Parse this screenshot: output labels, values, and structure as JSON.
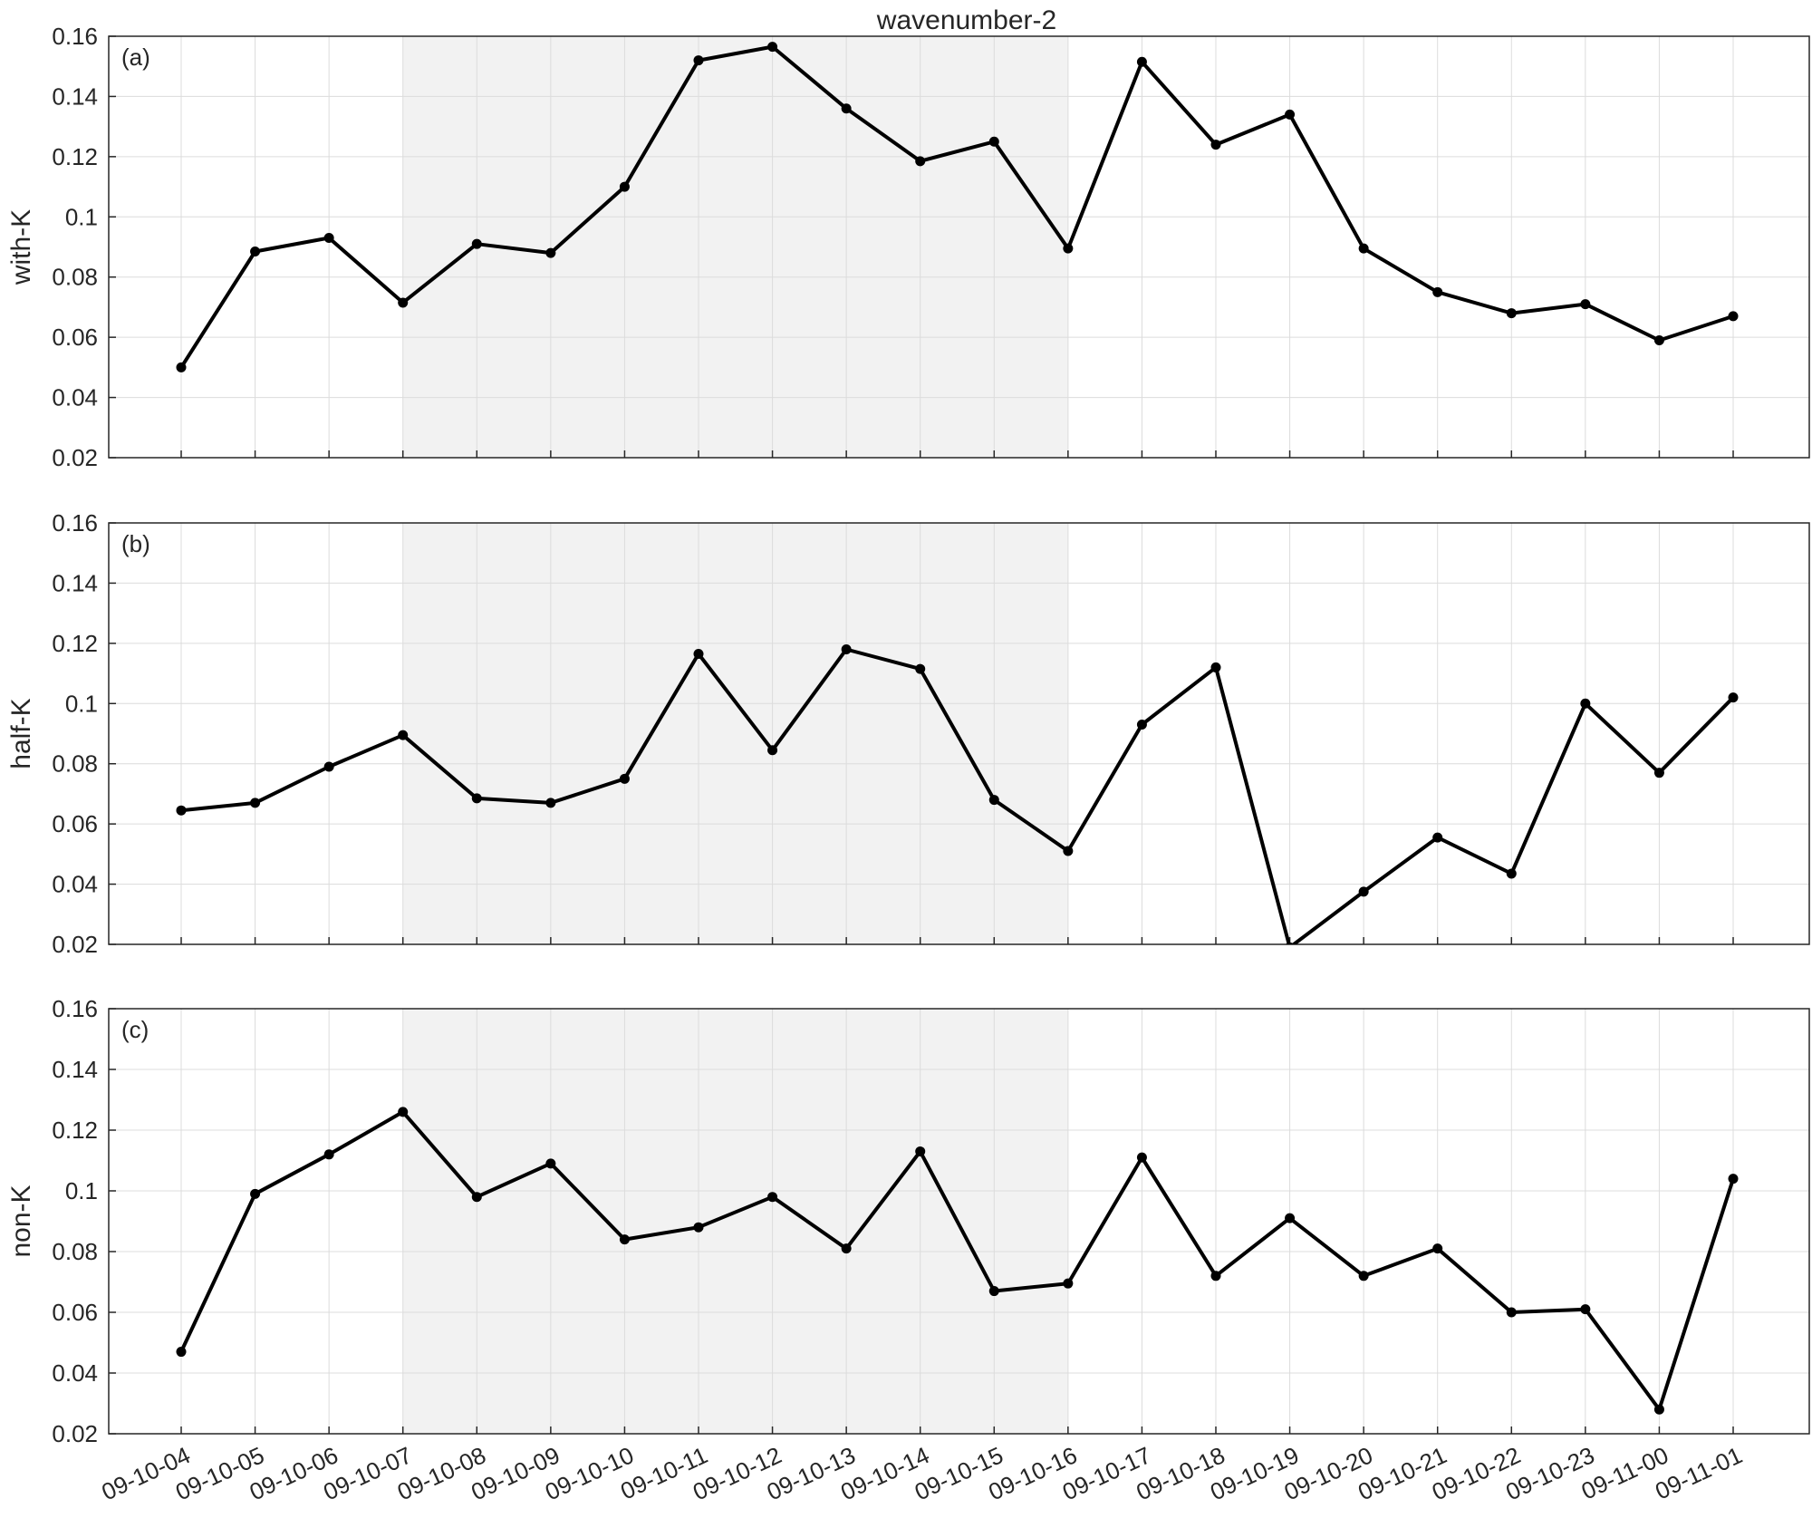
{
  "chart_data": {
    "type": "line",
    "title": "wavenumber-2",
    "categories": [
      "09-10-04",
      "09-10-05",
      "09-10-06",
      "09-10-07",
      "09-10-08",
      "09-10-09",
      "09-10-10",
      "09-10-11",
      "09-10-12",
      "09-10-13",
      "09-10-14",
      "09-10-15",
      "09-10-16",
      "09-10-17",
      "09-10-18",
      "09-10-19",
      "09-10-20",
      "09-10-21",
      "09-10-22",
      "09-10-23",
      "09-11-00",
      "09-11-01"
    ],
    "shaded_range": [
      "09-10-07",
      "09-10-16"
    ],
    "grid": true,
    "colors": {
      "line": "#000000",
      "shade": "#f2f2f2",
      "grid": "#dcdcdc",
      "axis": "#262626"
    },
    "panels": [
      {
        "label": "(a)",
        "ylabel": "with-K",
        "ylim": [
          0.02,
          0.16
        ],
        "yticks": [
          "0.02",
          "0.04",
          "0.06",
          "0.08",
          "0.1",
          "0.12",
          "0.14",
          "0.16"
        ],
        "values": [
          0.05,
          0.0885,
          0.093,
          0.0715,
          0.091,
          0.088,
          0.11,
          0.152,
          0.1565,
          0.136,
          0.1185,
          0.125,
          0.0895,
          0.1515,
          0.124,
          0.134,
          0.0895,
          0.075,
          0.068,
          0.071,
          0.059,
          0.067
        ]
      },
      {
        "label": "(b)",
        "ylabel": "half-K",
        "ylim": [
          0.02,
          0.16
        ],
        "yticks": [
          "0.02",
          "0.04",
          "0.06",
          "0.08",
          "0.1",
          "0.12",
          "0.14",
          "0.16"
        ],
        "values": [
          0.0645,
          0.067,
          0.079,
          0.0895,
          0.0685,
          0.067,
          0.075,
          0.1165,
          0.0845,
          0.118,
          0.1115,
          0.068,
          0.051,
          0.093,
          0.112,
          0.019,
          0.0375,
          0.0555,
          0.0435,
          0.1,
          0.077,
          0.102
        ]
      },
      {
        "label": "(c)",
        "ylabel": "non-K",
        "ylim": [
          0.02,
          0.16
        ],
        "yticks": [
          "0.02",
          "0.04",
          "0.06",
          "0.08",
          "0.1",
          "0.12",
          "0.14",
          "0.16"
        ],
        "values": [
          0.047,
          0.099,
          0.112,
          0.126,
          0.098,
          0.109,
          0.084,
          0.088,
          0.098,
          0.081,
          0.113,
          0.067,
          0.0695,
          0.111,
          0.072,
          0.091,
          0.072,
          0.081,
          0.06,
          0.061,
          0.028,
          0.104
        ]
      }
    ]
  }
}
